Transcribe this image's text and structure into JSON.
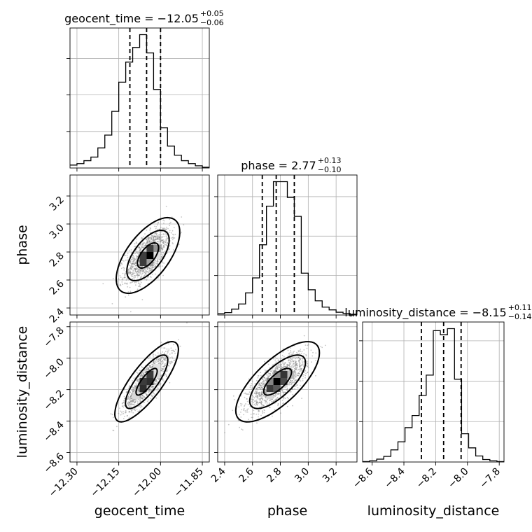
{
  "chart_data": {
    "type": "corner",
    "parameters": [
      "geocent_time",
      "phase",
      "luminosity_distance"
    ],
    "axis_labels": [
      "geocent_time",
      "phase",
      "luminosity_distance"
    ],
    "ranges": [
      [
        -12.325,
        -11.825
      ],
      [
        2.35,
        3.35
      ],
      [
        -8.66,
        -7.77
      ]
    ],
    "ticks": [
      [
        -12.3,
        -12.15,
        -12.0,
        -11.85
      ],
      [
        2.4,
        2.6,
        2.8,
        3.0,
        3.2
      ],
      [
        -8.6,
        -8.4,
        -8.2,
        -8.0,
        -7.8
      ]
    ],
    "tick_labels": [
      [
        "−12.30",
        "−12.15",
        "−12.00",
        "−11.85"
      ],
      [
        "2.4",
        "2.6",
        "2.8",
        "3.0",
        "3.2"
      ],
      [
        "−8.6",
        "−8.4",
        "−8.2",
        "−8.0",
        "−7.8"
      ]
    ],
    "titles": [
      {
        "name": "geocent_time",
        "median": "−12.05",
        "plus": "+0.05",
        "minus": "−0.06"
      },
      {
        "name": "phase",
        "median": "2.77",
        "plus": "+0.13",
        "minus": "−0.10"
      },
      {
        "name": "luminosity_distance",
        "median": "−8.15",
        "plus": "+0.11",
        "minus": "−0.14"
      }
    ],
    "quantiles": [
      [
        -12.11,
        -12.05,
        -12.0
      ],
      [
        2.67,
        2.77,
        2.9
      ],
      [
        -8.29,
        -8.15,
        -8.04
      ]
    ],
    "histograms": [
      {
        "param": "geocent_time",
        "bins": 20,
        "counts": [
          0.8,
          1.2,
          2.0,
          3.0,
          5.5,
          9.0,
          15.5,
          23.5,
          29.0,
          33.0,
          36.5,
          31.5,
          21.5,
          11.0,
          6.0,
          3.5,
          2.0,
          1.2,
          0.6,
          0.2
        ]
      },
      {
        "param": "phase",
        "bins": 20,
        "counts": [
          0.3,
          0.6,
          1.5,
          2.8,
          5.6,
          9.4,
          17.8,
          27.6,
          33.8,
          33.8,
          29.8,
          25.0,
          10.6,
          6.4,
          3.6,
          2.0,
          1.3,
          0.7,
          0.4,
          0.2
        ]
      },
      {
        "param": "luminosity_distance",
        "bins": 20,
        "counts": [
          0.1,
          0.3,
          0.7,
          1.4,
          3.0,
          5.0,
          8.5,
          11.5,
          16.5,
          21.5,
          32.5,
          31.5,
          33.0,
          20.5,
          7.0,
          3.5,
          1.5,
          0.6,
          0.3,
          0.1
        ]
      }
    ],
    "histogram_max": [
      36.5,
      33.8,
      33.0
    ],
    "histogram_y_ticks": [
      10,
      20,
      30
    ],
    "pairs": [
      {
        "x": "geocent_time",
        "y": "phase",
        "center": [
          -12.045,
          2.775
        ],
        "sx": 0.038,
        "sy": 0.09,
        "rho": 0.62
      },
      {
        "x": "geocent_time",
        "y": "luminosity_distance",
        "center": [
          -12.05,
          -8.15
        ],
        "sx": 0.038,
        "sy": 0.085,
        "rho": 0.8
      },
      {
        "x": "phase",
        "y": "luminosity_distance",
        "center": [
          2.78,
          -8.15
        ],
        "sx": 0.1,
        "sy": 0.085,
        "rho": 0.72
      }
    ],
    "contour_levels": [
      0.393,
      0.865,
      0.989
    ],
    "grid": true
  }
}
